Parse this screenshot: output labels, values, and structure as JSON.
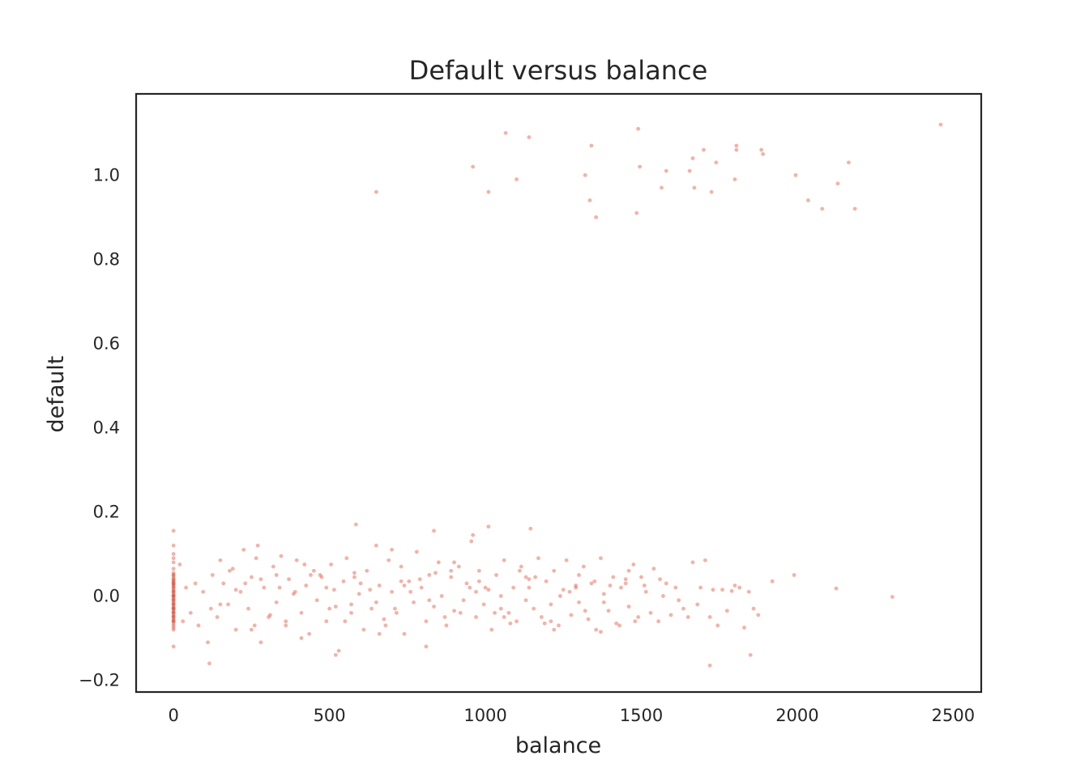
{
  "chart_data": {
    "type": "scatter",
    "title": "Default versus balance",
    "xlabel": "balance",
    "ylabel": "default",
    "xlim": [
      -120,
      2590
    ],
    "ylim": [
      -0.228,
      1.193
    ],
    "xticks": [
      0,
      500,
      1000,
      1500,
      2000,
      2500
    ],
    "xtick_labels": [
      "0",
      "500",
      "1000",
      "1500",
      "2000",
      "2500"
    ],
    "yticks": [
      -0.2,
      0.0,
      0.2,
      0.4,
      0.6,
      0.8,
      1.0
    ],
    "ytick_labels": [
      "−0.2",
      "0.0",
      "0.2",
      "0.4",
      "0.6",
      "0.8",
      "1.0"
    ],
    "grid": false,
    "point_color": "#e5553f",
    "point_opacity": 0.45,
    "series": [
      {
        "x": [
          650,
          960,
          1010,
          1065,
          1100,
          1140,
          1320,
          1335,
          1340,
          1355,
          1485,
          1490,
          1495,
          1565,
          1580,
          1655,
          1665,
          1670,
          1700,
          1725,
          1740,
          1800,
          1805,
          1805,
          1885,
          1890,
          1995,
          2035,
          2080,
          2130,
          2165,
          2185,
          2460
        ],
        "y": [
          0.96,
          1.02,
          0.96,
          1.1,
          0.99,
          1.09,
          1.0,
          0.94,
          1.07,
          0.9,
          0.91,
          1.11,
          1.02,
          0.97,
          1.01,
          1.01,
          1.04,
          0.97,
          1.06,
          0.96,
          1.03,
          0.99,
          1.06,
          1.07,
          1.06,
          1.05,
          1.0,
          0.94,
          0.92,
          0.98,
          1.03,
          0.92,
          1.12
        ]
      },
      {
        "x": [
          0,
          0,
          0,
          0,
          0,
          0,
          0,
          0,
          0,
          0,
          0,
          0,
          0,
          0,
          0,
          0,
          0,
          0,
          0,
          0,
          0,
          0,
          0,
          0,
          0,
          0,
          0,
          0,
          0,
          0,
          0,
          0,
          0,
          0,
          0,
          0,
          0,
          0,
          0,
          0,
          0,
          0,
          0,
          0,
          0,
          0,
          0,
          0,
          0,
          0,
          0,
          0,
          0,
          0,
          0,
          0,
          0,
          0,
          0,
          0,
          20,
          30,
          40,
          55,
          70,
          80,
          95,
          110,
          115,
          125,
          140,
          150,
          160,
          175,
          190,
          200,
          215,
          225,
          240,
          250,
          265,
          280,
          290,
          305,
          320,
          330,
          345,
          360,
          370,
          385,
          395,
          410,
          425,
          435,
          450,
          460,
          475,
          490,
          505,
          515,
          530,
          545,
          555,
          570,
          580,
          595,
          610,
          620,
          635,
          650,
          660,
          675,
          690,
          700,
          715,
          730,
          740,
          755,
          770,
          780,
          795,
          810,
          820,
          835,
          850,
          860,
          875,
          890,
          900,
          915,
          930,
          940,
          955,
          970,
          980,
          995,
          1010,
          1020,
          1035,
          1050,
          1060,
          1075,
          1090,
          1100,
          1115,
          1130,
          1140,
          1155,
          1170,
          1180,
          1195,
          1210,
          1220,
          1235,
          1250,
          1260,
          1275,
          1290,
          1300,
          1315,
          1330,
          1340,
          1355,
          1370,
          1380,
          1395,
          1410,
          1420,
          1435,
          1450,
          1460,
          1475,
          1490,
          1500,
          1515,
          1530,
          1540,
          1555,
          1570,
          1580,
          1595,
          1610,
          1620,
          1635,
          1650,
          1665,
          1680,
          1690,
          1705,
          1720,
          1730,
          1745,
          1760,
          1775,
          1790,
          1800,
          1815,
          1830,
          1845,
          1860,
          1875,
          1920,
          1990,
          2125,
          2305,
          150,
          230,
          310,
          390,
          470,
          550,
          630,
          710,
          790,
          870,
          950,
          1030,
          1110,
          1190,
          1270,
          1350,
          1430,
          1510,
          180,
          260,
          340,
          420,
          500,
          580,
          660,
          740,
          820,
          900,
          980,
          1060,
          1140,
          1220,
          1300,
          1380,
          1460,
          120,
          200,
          280,
          360,
          440,
          520,
          600,
          680,
          760,
          840,
          920,
          1000,
          1080,
          1160,
          1240,
          1320,
          1400,
          1480,
          1560,
          250,
          330,
          410,
          490,
          570,
          650,
          730,
          810,
          890,
          970,
          1050,
          1130,
          1210,
          1290,
          1370,
          1450,
          585,
          835,
          960,
          1010,
          1145,
          1720,
          1850,
          270,
          520,
          700
        ],
        "y": [
          0.155,
          0.12,
          0.1,
          0.09,
          0.08,
          0.065,
          0.055,
          0.05,
          0.04,
          0.035,
          0.03,
          0.025,
          0.02,
          0.015,
          0.01,
          0.005,
          0.0,
          -0.005,
          -0.01,
          -0.015,
          -0.02,
          -0.025,
          -0.03,
          -0.035,
          -0.04,
          -0.045,
          -0.05,
          -0.055,
          -0.06,
          -0.065,
          -0.07,
          -0.075,
          -0.08,
          -0.12,
          0.045,
          0.035,
          0.025,
          0.012,
          0.002,
          -0.008,
          -0.018,
          -0.028,
          -0.038,
          -0.048,
          -0.058,
          0.05,
          0.03,
          0.01,
          -0.01,
          -0.03,
          -0.05,
          0.04,
          0.02,
          0.0,
          -0.02,
          -0.04,
          -0.06,
          0.03,
          -0.03,
          0.0,
          0.075,
          -0.06,
          0.02,
          -0.04,
          0.03,
          -0.07,
          0.01,
          -0.11,
          -0.16,
          0.05,
          -0.05,
          0.085,
          0.03,
          -0.02,
          0.065,
          -0.08,
          0.01,
          0.11,
          -0.03,
          0.045,
          0.09,
          -0.11,
          0.02,
          -0.05,
          0.07,
          -0.015,
          0.095,
          -0.07,
          0.04,
          0.005,
          0.085,
          -0.04,
          0.025,
          -0.09,
          0.06,
          -0.01,
          0.045,
          -0.06,
          0.075,
          0.015,
          -0.13,
          0.035,
          0.09,
          -0.02,
          0.055,
          0.005,
          -0.08,
          0.06,
          -0.03,
          0.12,
          0.025,
          -0.055,
          0.085,
          0.01,
          -0.04,
          0.07,
          -0.09,
          0.035,
          -0.015,
          0.105,
          0.02,
          -0.06,
          0.05,
          -0.025,
          0.08,
          0.0,
          -0.07,
          0.045,
          -0.035,
          0.07,
          -0.01,
          0.03,
          0.13,
          -0.05,
          0.06,
          -0.02,
          0.015,
          -0.08,
          0.05,
          0.0,
          0.085,
          -0.04,
          0.02,
          -0.06,
          0.07,
          -0.01,
          0.04,
          -0.03,
          0.09,
          -0.05,
          0.035,
          -0.02,
          0.06,
          -0.07,
          0.015,
          0.085,
          -0.045,
          0.025,
          -0.015,
          0.07,
          -0.055,
          0.03,
          -0.08,
          0.09,
          0.005,
          -0.035,
          0.045,
          -0.065,
          0.02,
          0.04,
          -0.025,
          0.075,
          -0.05,
          0.045,
          0.01,
          -0.04,
          0.065,
          -0.06,
          0.0,
          0.03,
          -0.045,
          0.02,
          -0.01,
          -0.03,
          -0.05,
          0.08,
          -0.02,
          0.02,
          0.085,
          -0.05,
          0.015,
          -0.07,
          0.015,
          -0.035,
          0.012,
          0.025,
          0.02,
          -0.075,
          0.01,
          -0.03,
          -0.045,
          0.035,
          0.05,
          0.018,
          -0.002,
          -0.02,
          0.03,
          -0.045,
          0.01,
          0.05,
          -0.06,
          0.015,
          -0.03,
          0.04,
          -0.05,
          0.02,
          -0.04,
          0.06,
          -0.065,
          0.01,
          0.035,
          -0.07,
          0.025,
          0.06,
          -0.07,
          0.02,
          0.075,
          -0.03,
          0.045,
          -0.09,
          0.025,
          -0.01,
          0.08,
          0.035,
          -0.05,
          0.02,
          -0.08,
          0.05,
          -0.015,
          0.06,
          -0.03,
          0.015,
          0.04,
          -0.06,
          0.05,
          -0.025,
          0.03,
          -0.07,
          0.01,
          0.055,
          -0.04,
          0.02,
          -0.065,
          0.045,
          0.0,
          -0.035,
          0.025,
          -0.06,
          0.04,
          -0.08,
          0.05,
          -0.1,
          0.02,
          -0.04,
          -0.015,
          0.035,
          -0.12,
          0.06,
          0.01,
          -0.03,
          0.045,
          -0.06,
          0.02,
          -0.085,
          0.03,
          0.17,
          0.155,
          0.145,
          0.165,
          0.16,
          -0.165,
          -0.14,
          0.12,
          -0.14,
          0.11
        ]
      }
    ]
  }
}
